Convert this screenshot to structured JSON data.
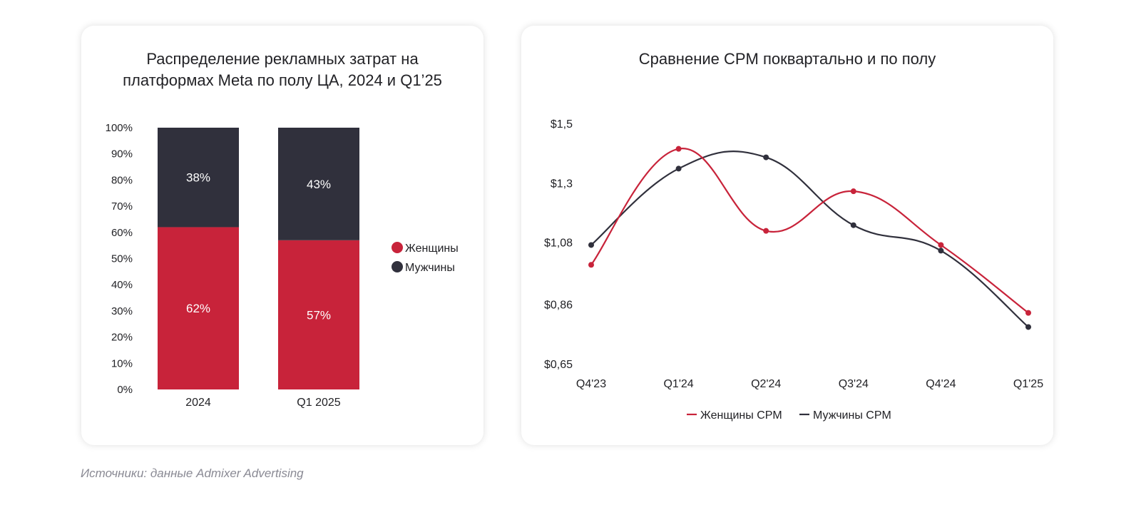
{
  "colors": {
    "women": "#c8233a",
    "men": "#30303c",
    "axis_text": "#222226",
    "source_text": "#8a8a94"
  },
  "source": "Источники: данные Admixer Advertising",
  "chart_data": [
    {
      "type": "bar",
      "stacked": true,
      "title": "Распределение рекламных затрат на платформах Meta по полу ЦА, 2024 и Q1’25",
      "categories": [
        "2024",
        "Q1 2025"
      ],
      "series": [
        {
          "name": "Женщины",
          "values": [
            62,
            57
          ],
          "labels": [
            "62%",
            "57%"
          ]
        },
        {
          "name": "Мужчины",
          "values": [
            38,
            43
          ],
          "labels": [
            "38%",
            "43%"
          ]
        }
      ],
      "ylim": [
        0,
        100
      ],
      "yticks": [
        "0%",
        "10%",
        "20%",
        "30%",
        "40%",
        "50%",
        "60%",
        "70%",
        "80%",
        "90%",
        "100%"
      ],
      "legend": "right",
      "grid": false
    },
    {
      "type": "line",
      "smooth": true,
      "title": "Сравнение CPM поквартально и по полу",
      "categories": [
        "Q4'23",
        "Q1'24",
        "Q2'24",
        "Q3'24",
        "Q4'24",
        "Q1'25"
      ],
      "series": [
        {
          "name": "Женщины CPM",
          "values": [
            1.0,
            1.41,
            1.12,
            1.26,
            1.07,
            0.83
          ]
        },
        {
          "name": "Мужчины CPM",
          "values": [
            1.07,
            1.34,
            1.38,
            1.14,
            1.05,
            0.78
          ]
        }
      ],
      "ylim": [
        0.65,
        1.5
      ],
      "yticks": [
        {
          "value": 0.65,
          "label": "$0,65"
        },
        {
          "value": 0.86,
          "label": "$0,86"
        },
        {
          "value": 1.08,
          "label": "$1,08"
        },
        {
          "value": 1.29,
          "label": "$1,3"
        },
        {
          "value": 1.5,
          "label": "$1,5"
        }
      ],
      "legend": "bottom",
      "grid": false
    }
  ]
}
